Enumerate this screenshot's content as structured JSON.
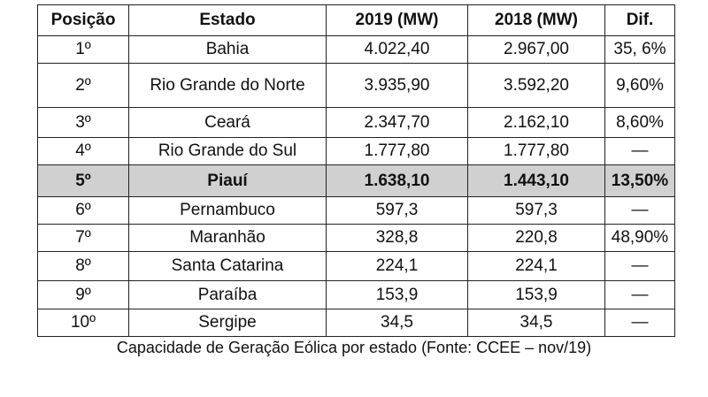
{
  "table": {
    "header": [
      "Posição",
      "Estado",
      "2019 (MW)",
      "2018 (MW)",
      "Dif."
    ],
    "rows": [
      [
        "1º",
        "Bahia",
        "4.022,40",
        "2.967,00",
        "35, 6%"
      ],
      [
        "2º",
        "Rio Grande do Norte",
        "3.935,90",
        "3.592,20",
        "9,60%"
      ],
      [
        "3º",
        "Ceará",
        "2.347,70",
        "2.162,10",
        "8,60%"
      ],
      [
        "4º",
        "Rio Grande do Sul",
        "1.777,80",
        "1.777,80",
        "—"
      ],
      [
        "5º",
        "Piauí",
        "1.638,10",
        "1.443,10",
        "13,50%"
      ],
      [
        "6º",
        "Pernambuco",
        "597,3",
        "597,3",
        "—"
      ],
      [
        "7º",
        "Maranhão",
        "328,8",
        "220,8",
        "48,90%"
      ],
      [
        "8º",
        "Santa Catarina",
        "224,1",
        "224,1",
        "—"
      ],
      [
        "9º",
        "Paraíba",
        "153,9",
        "153,9",
        "—"
      ],
      [
        "10º",
        "Sergipe",
        "34,5",
        "34,5",
        "—"
      ]
    ],
    "highlight_row": 4
  },
  "caption": "Capacidade de Geração Eólica por estado (Fonte: CCEE – nov/19)"
}
